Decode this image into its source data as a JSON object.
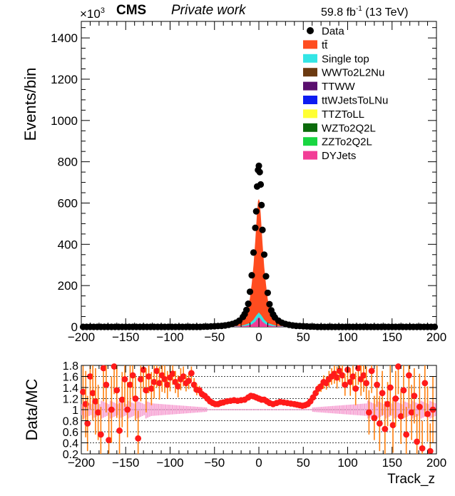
{
  "header": {
    "cms_label": "CMS",
    "private_label": "Private work",
    "lumi_value": "59.8 fb",
    "lumi_exp": "-1",
    "lumi_energy": " (13 TeV)",
    "y_multiplier": "×10",
    "y_multiplier_exp": "3"
  },
  "colors": {
    "ttbar": "#ff4c1f",
    "single_top": "#33e5e5",
    "wwto2l2nu": "#6b3a10",
    "ttww": "#5a0f6e",
    "ttwjets": "#0d1cf2",
    "ttztoll": "#ffff33",
    "wzto2q2l": "#0b6a0b",
    "zzto2q2l": "#19d641",
    "dyjets": "#f23d96",
    "ratio_points": "#ff1a1a",
    "ratio_err": "#ff7f0e",
    "ratio_band": "#f7a8d6"
  },
  "chart_data": [
    {
      "type": "bar",
      "name": "main",
      "ylabel": "Events/bin",
      "xlim": [
        -200,
        200
      ],
      "ylim": [
        0,
        1480
      ],
      "x_ticks": [
        -200,
        -150,
        -100,
        -50,
        0,
        50,
        100,
        150,
        200
      ],
      "y_ticks": [
        0,
        200,
        400,
        600,
        800,
        1000,
        1200,
        1400
      ],
      "legend": [
        {
          "label": "Data",
          "kind": "marker"
        },
        {
          "label": "tt̄",
          "kind": "box",
          "color_key": "ttbar"
        },
        {
          "label": "Single top",
          "kind": "box",
          "color_key": "single_top"
        },
        {
          "label": "WWTo2L2Nu",
          "kind": "box",
          "color_key": "wwto2l2nu"
        },
        {
          "label": "TTWW",
          "kind": "box",
          "color_key": "ttww"
        },
        {
          "label": "ttWJetsToLNu",
          "kind": "box",
          "color_key": "ttwjets"
        },
        {
          "label": "TTZToLL",
          "kind": "box",
          "color_key": "ttztoll"
        },
        {
          "label": "WZTo2Q2L",
          "kind": "box",
          "color_key": "wzto2q2l"
        },
        {
          "label": "ZZTo2Q2L",
          "kind": "box",
          "color_key": "zzto2q2l"
        },
        {
          "label": "DYJets",
          "kind": "box",
          "color_key": "dyjets"
        }
      ],
      "data_points": [
        [
          -198,
          0
        ],
        [
          -194,
          0
        ],
        [
          -190,
          0
        ],
        [
          -186,
          0
        ],
        [
          -182,
          0
        ],
        [
          -178,
          0
        ],
        [
          -174,
          0
        ],
        [
          -170,
          0
        ],
        [
          -166,
          0
        ],
        [
          -162,
          0
        ],
        [
          -158,
          0
        ],
        [
          -154,
          0
        ],
        [
          -150,
          0
        ],
        [
          -146,
          0
        ],
        [
          -142,
          0
        ],
        [
          -138,
          0
        ],
        [
          -134,
          0
        ],
        [
          -130,
          0
        ],
        [
          -126,
          0
        ],
        [
          -122,
          0
        ],
        [
          -118,
          0
        ],
        [
          -114,
          0
        ],
        [
          -110,
          0
        ],
        [
          -106,
          0
        ],
        [
          -102,
          0
        ],
        [
          -98,
          0
        ],
        [
          -94,
          0
        ],
        [
          -90,
          0
        ],
        [
          -86,
          0
        ],
        [
          -82,
          0
        ],
        [
          -78,
          0
        ],
        [
          -74,
          0
        ],
        [
          -70,
          0
        ],
        [
          -66,
          0
        ],
        [
          -62,
          1
        ],
        [
          -58,
          1
        ],
        [
          -54,
          2
        ],
        [
          -50,
          3
        ],
        [
          -46,
          4
        ],
        [
          -42,
          5
        ],
        [
          -38,
          7
        ],
        [
          -34,
          10
        ],
        [
          -30,
          14
        ],
        [
          -26,
          20
        ],
        [
          -22,
          30
        ],
        [
          -18,
          48
        ],
        [
          -16,
          62
        ],
        [
          -14,
          82
        ],
        [
          -12,
          112
        ],
        [
          -10,
          170
        ],
        [
          -8,
          250
        ],
        [
          -6,
          360
        ],
        [
          -4,
          480
        ],
        [
          -3,
          560
        ],
        [
          -2,
          680
        ],
        [
          -1,
          760
        ],
        [
          0,
          780
        ],
        [
          1,
          750
        ],
        [
          2,
          690
        ],
        [
          3,
          590
        ],
        [
          4,
          470
        ],
        [
          6,
          350
        ],
        [
          8,
          245
        ],
        [
          10,
          165
        ],
        [
          12,
          110
        ],
        [
          14,
          80
        ],
        [
          16,
          60
        ],
        [
          18,
          46
        ],
        [
          22,
          30
        ],
        [
          26,
          20
        ],
        [
          30,
          14
        ],
        [
          34,
          10
        ],
        [
          38,
          7
        ],
        [
          42,
          5
        ],
        [
          46,
          4
        ],
        [
          50,
          3
        ],
        [
          54,
          2
        ],
        [
          58,
          1
        ],
        [
          62,
          1
        ],
        [
          66,
          0
        ],
        [
          70,
          0
        ],
        [
          74,
          0
        ],
        [
          78,
          0
        ],
        [
          82,
          0
        ],
        [
          86,
          0
        ],
        [
          90,
          0
        ],
        [
          94,
          0
        ],
        [
          98,
          0
        ],
        [
          102,
          0
        ],
        [
          106,
          0
        ],
        [
          110,
          0
        ],
        [
          114,
          0
        ],
        [
          118,
          0
        ],
        [
          122,
          0
        ],
        [
          126,
          0
        ],
        [
          130,
          0
        ],
        [
          134,
          0
        ],
        [
          138,
          0
        ],
        [
          142,
          0
        ],
        [
          146,
          0
        ],
        [
          150,
          0
        ],
        [
          154,
          0
        ],
        [
          158,
          0
        ],
        [
          162,
          0
        ],
        [
          166,
          0
        ],
        [
          170,
          0
        ],
        [
          174,
          0
        ],
        [
          178,
          0
        ],
        [
          182,
          0
        ],
        [
          186,
          0
        ],
        [
          190,
          0
        ],
        [
          194,
          0
        ],
        [
          198,
          0
        ]
      ],
      "mc_total": [
        [
          -60,
          1
        ],
        [
          -40,
          4
        ],
        [
          -30,
          12
        ],
        [
          -20,
          35
        ],
        [
          -15,
          60
        ],
        [
          -12,
          95
        ],
        [
          -10,
          140
        ],
        [
          -8,
          210
        ],
        [
          -6,
          300
        ],
        [
          -4,
          420
        ],
        [
          -2,
          560
        ],
        [
          -1,
          610
        ],
        [
          0,
          620
        ],
        [
          1,
          605
        ],
        [
          2,
          550
        ],
        [
          4,
          410
        ],
        [
          6,
          290
        ],
        [
          8,
          205
        ],
        [
          10,
          135
        ],
        [
          12,
          92
        ],
        [
          15,
          58
        ],
        [
          20,
          34
        ],
        [
          30,
          11
        ],
        [
          40,
          4
        ],
        [
          60,
          1
        ]
      ],
      "mc_single_top": [
        [
          -40,
          1
        ],
        [
          -20,
          5
        ],
        [
          -10,
          18
        ],
        [
          -6,
          35
        ],
        [
          -3,
          55
        ],
        [
          0,
          70
        ],
        [
          3,
          55
        ],
        [
          6,
          35
        ],
        [
          10,
          18
        ],
        [
          20,
          5
        ],
        [
          40,
          1
        ]
      ],
      "mc_dyjets": [
        [
          -30,
          1
        ],
        [
          -15,
          4
        ],
        [
          -8,
          12
        ],
        [
          -4,
          25
        ],
        [
          -2,
          38
        ],
        [
          0,
          48
        ],
        [
          2,
          38
        ],
        [
          4,
          25
        ],
        [
          8,
          12
        ],
        [
          15,
          4
        ],
        [
          30,
          1
        ]
      ]
    },
    {
      "type": "scatter",
      "name": "ratio",
      "xlabel": "Track_z",
      "ylabel": "Data/MC",
      "xlim": [
        -200,
        200
      ],
      "ylim": [
        0.2,
        1.8
      ],
      "x_ticks": [
        -200,
        -150,
        -100,
        -50,
        0,
        50,
        100,
        150,
        200
      ],
      "y_ticks": [
        0.2,
        0.4,
        0.6,
        0.8,
        1,
        1.2,
        1.4,
        1.6,
        1.8
      ],
      "y_tick_labels": [
        "0.2",
        "0.4",
        "0.6",
        "0.8",
        "1",
        "1.2",
        "1.4",
        "1.6",
        "1.8"
      ],
      "grid_y": [
        1.2,
        1.4,
        1.6,
        1.8,
        0.8,
        0.6,
        0.4,
        0.2
      ],
      "points": [
        [
          -198,
          1.32,
          0.5
        ],
        [
          -195,
          1.1,
          0.6
        ],
        [
          -193,
          0.75,
          0.5
        ],
        [
          -190,
          1.6,
          0.6
        ],
        [
          -187,
          1.3,
          0.5
        ],
        [
          -184,
          1.15,
          0.6
        ],
        [
          -181,
          0.95,
          0.5
        ],
        [
          -178,
          0.55,
          0.5
        ],
        [
          -175,
          1.75,
          0.6
        ],
        [
          -172,
          1.45,
          0.5
        ],
        [
          -169,
          0.45,
          0.5
        ],
        [
          -166,
          1.0,
          0.6
        ],
        [
          -163,
          1.78,
          0.5
        ],
        [
          -160,
          1.35,
          0.5
        ],
        [
          -157,
          0.62,
          0.5
        ],
        [
          -154,
          1.18,
          0.5
        ],
        [
          -151,
          1.55,
          0.5
        ],
        [
          -148,
          1.0,
          0.5
        ],
        [
          -145,
          1.45,
          0.4
        ],
        [
          -142,
          1.62,
          0.4
        ],
        [
          -139,
          1.2,
          0.4
        ],
        [
          -136,
          0.48,
          0.5
        ],
        [
          -133,
          1.55,
          0.4
        ],
        [
          -130,
          1.72,
          0.4
        ],
        [
          -127,
          1.35,
          0.4
        ],
        [
          -124,
          1.6,
          0.3
        ],
        [
          -121,
          1.38,
          0.3
        ],
        [
          -118,
          1.5,
          0.3
        ],
        [
          -115,
          1.7,
          0.3
        ],
        [
          -112,
          1.48,
          0.3
        ],
        [
          -109,
          1.62,
          0.3
        ],
        [
          -106,
          1.55,
          0.25
        ],
        [
          -103,
          1.45,
          0.25
        ],
        [
          -100,
          1.58,
          0.25
        ],
        [
          -97,
          1.65,
          0.2
        ],
        [
          -94,
          1.5,
          0.2
        ],
        [
          -91,
          1.42,
          0.2
        ],
        [
          -88,
          1.55,
          0.2
        ],
        [
          -85,
          1.6,
          0.18
        ],
        [
          -82,
          1.48,
          0.15
        ],
        [
          -79,
          1.52,
          0.15
        ],
        [
          -76,
          1.66,
          0.12
        ],
        [
          -73,
          1.45,
          0.12
        ],
        [
          -70,
          1.36,
          0.1
        ],
        [
          -67,
          1.35,
          0.08
        ],
        [
          -64,
          1.28,
          0.06
        ],
        [
          -61,
          1.25,
          0.05
        ],
        [
          -58,
          1.2,
          0.04
        ],
        [
          -55,
          1.15,
          0.03
        ],
        [
          -52,
          1.12,
          0.02
        ],
        [
          -49,
          1.1,
          0.02
        ],
        [
          -46,
          1.1,
          0.01
        ],
        [
          -43,
          1.12,
          0.01
        ],
        [
          -40,
          1.13,
          0.01
        ],
        [
          -36,
          1.15,
          0.01
        ],
        [
          -32,
          1.16,
          0.01
        ],
        [
          -28,
          1.17,
          0.01
        ],
        [
          -24,
          1.16,
          0.01
        ],
        [
          -20,
          1.17,
          0.01
        ],
        [
          -16,
          1.18,
          0.01
        ],
        [
          -12,
          1.22,
          0.01
        ],
        [
          -9,
          1.25,
          0.01
        ],
        [
          -6,
          1.24,
          0.01
        ],
        [
          -3,
          1.22,
          0.01
        ],
        [
          0,
          1.2,
          0.01
        ],
        [
          3,
          1.18,
          0.01
        ],
        [
          6,
          1.18,
          0.01
        ],
        [
          9,
          1.15,
          0.01
        ],
        [
          12,
          1.12,
          0.01
        ],
        [
          16,
          1.1,
          0.01
        ],
        [
          20,
          1.12,
          0.01
        ],
        [
          24,
          1.14,
          0.01
        ],
        [
          28,
          1.13,
          0.01
        ],
        [
          32,
          1.12,
          0.01
        ],
        [
          36,
          1.11,
          0.01
        ],
        [
          40,
          1.1,
          0.01
        ],
        [
          43,
          1.09,
          0.01
        ],
        [
          46,
          1.08,
          0.02
        ],
        [
          49,
          1.07,
          0.02
        ],
        [
          52,
          1.08,
          0.02
        ],
        [
          55,
          1.1,
          0.03
        ],
        [
          58,
          1.15,
          0.04
        ],
        [
          61,
          1.22,
          0.05
        ],
        [
          64,
          1.3,
          0.06
        ],
        [
          67,
          1.38,
          0.08
        ],
        [
          70,
          1.42,
          0.1
        ],
        [
          73,
          1.5,
          0.12
        ],
        [
          76,
          1.48,
          0.12
        ],
        [
          79,
          1.55,
          0.15
        ],
        [
          82,
          1.6,
          0.15
        ],
        [
          85,
          1.65,
          0.18
        ],
        [
          88,
          1.58,
          0.2
        ],
        [
          91,
          1.7,
          0.2
        ],
        [
          94,
          1.62,
          0.2
        ],
        [
          97,
          1.45,
          0.2
        ],
        [
          100,
          1.72,
          0.25
        ],
        [
          103,
          1.5,
          0.25
        ],
        [
          106,
          1.6,
          0.25
        ],
        [
          109,
          1.38,
          0.3
        ],
        [
          112,
          1.75,
          0.3
        ],
        [
          115,
          1.55,
          0.3
        ],
        [
          118,
          1.62,
          0.3
        ],
        [
          121,
          1.48,
          0.3
        ],
        [
          124,
          0.95,
          0.4
        ],
        [
          127,
          1.7,
          0.4
        ],
        [
          130,
          0.85,
          0.4
        ],
        [
          133,
          1.45,
          0.4
        ],
        [
          136,
          0.75,
          0.5
        ],
        [
          139,
          1.3,
          0.4
        ],
        [
          142,
          0.65,
          0.5
        ],
        [
          145,
          1.1,
          0.4
        ],
        [
          148,
          1.4,
          0.5
        ],
        [
          151,
          0.72,
          0.5
        ],
        [
          154,
          1.2,
          0.5
        ],
        [
          157,
          1.78,
          0.5
        ],
        [
          160,
          0.88,
          0.5
        ],
        [
          163,
          1.35,
          0.5
        ],
        [
          166,
          0.55,
          0.5
        ],
        [
          169,
          1.62,
          0.6
        ],
        [
          172,
          0.95,
          0.5
        ],
        [
          175,
          1.25,
          0.5
        ],
        [
          178,
          0.42,
          0.5
        ],
        [
          181,
          1.05,
          0.6
        ],
        [
          184,
          0.3,
          0.5
        ],
        [
          187,
          1.48,
          0.6
        ],
        [
          190,
          0.92,
          0.5
        ],
        [
          193,
          0.25,
          0.5
        ],
        [
          196,
          1.0,
          0.6
        ]
      ]
    }
  ]
}
